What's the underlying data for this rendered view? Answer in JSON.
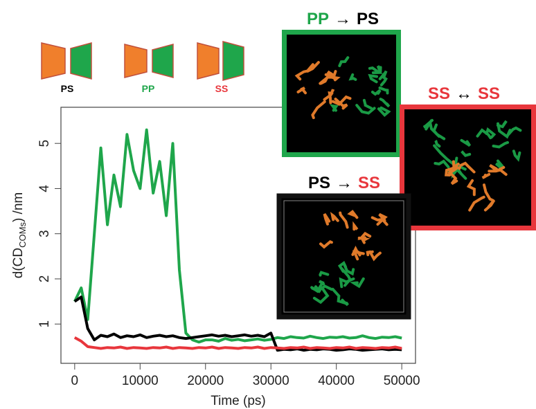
{
  "chart_data": {
    "type": "line",
    "xlabel": "Time (ps)",
    "ylabel": [
      "d(CD",
      "COMs",
      ") /nm"
    ],
    "xlim": [
      -2100,
      52100
    ],
    "ylim": [
      0.13,
      5.8
    ],
    "xticks": [
      0,
      10000,
      20000,
      30000,
      40000,
      50000
    ],
    "yticks": [
      1,
      2,
      3,
      4,
      5
    ],
    "x": [
      0,
      1000,
      2000,
      3000,
      4000,
      5000,
      6000,
      7000,
      8000,
      9000,
      10000,
      11000,
      12000,
      13000,
      14000,
      15000,
      16000,
      17000,
      18000,
      19000,
      20000,
      21000,
      22000,
      23000,
      24000,
      25000,
      26000,
      27000,
      28000,
      29000,
      30000,
      31000,
      32000,
      33000,
      34000,
      35000,
      36000,
      37000,
      38000,
      39000,
      40000,
      41000,
      42000,
      43000,
      44000,
      45000,
      46000,
      47000,
      48000,
      49000,
      50000
    ],
    "series": [
      {
        "color": "#1fa64b",
        "values": [
          1.5,
          1.8,
          1.1,
          3.0,
          4.9,
          3.2,
          4.3,
          3.6,
          5.2,
          4.4,
          4.0,
          5.3,
          3.9,
          4.6,
          3.4,
          5.0,
          2.2,
          0.8,
          0.65,
          0.6,
          0.65,
          0.65,
          0.62,
          0.68,
          0.64,
          0.66,
          0.63,
          0.65,
          0.67,
          0.64,
          0.66,
          0.7,
          0.68,
          0.72,
          0.7,
          0.69,
          0.73,
          0.7,
          0.68,
          0.71,
          0.7,
          0.72,
          0.69,
          0.7,
          0.74,
          0.7,
          0.68,
          0.71,
          0.7,
          0.72,
          0.69
        ]
      },
      {
        "color": "#000000",
        "values": [
          1.5,
          1.6,
          0.9,
          0.65,
          0.75,
          0.72,
          0.78,
          0.7,
          0.74,
          0.72,
          0.76,
          0.7,
          0.73,
          0.75,
          0.72,
          0.74,
          0.7,
          0.68,
          0.7,
          0.72,
          0.74,
          0.76,
          0.73,
          0.75,
          0.72,
          0.74,
          0.76,
          0.73,
          0.75,
          0.72,
          0.8,
          0.42,
          0.44,
          0.43,
          0.45,
          0.42,
          0.44,
          0.43,
          0.45,
          0.44,
          0.42,
          0.43,
          0.45,
          0.44,
          0.42,
          0.43,
          0.44,
          0.45,
          0.43,
          0.44,
          0.43
        ]
      },
      {
        "color": "#e8363c",
        "values": [
          0.7,
          0.62,
          0.5,
          0.48,
          0.46,
          0.48,
          0.47,
          0.49,
          0.46,
          0.48,
          0.47,
          0.46,
          0.48,
          0.47,
          0.49,
          0.46,
          0.48,
          0.47,
          0.46,
          0.48,
          0.47,
          0.49,
          0.46,
          0.48,
          0.47,
          0.46,
          0.48,
          0.47,
          0.49,
          0.46,
          0.48,
          0.47,
          0.46,
          0.48,
          0.47,
          0.49,
          0.46,
          0.48,
          0.47,
          0.46,
          0.48,
          0.47,
          0.49,
          0.46,
          0.48,
          0.47,
          0.46,
          0.48,
          0.47,
          0.49,
          0.46
        ]
      }
    ],
    "legend": [
      {
        "label": "PS",
        "color": "#000000"
      },
      {
        "label": "PP",
        "color": "#1fa64b"
      },
      {
        "label": "SS",
        "color": "#e8363c"
      }
    ],
    "annotations": [
      [
        {
          "text": "PP",
          "color": "#1fa64b"
        },
        {
          "text": "→",
          "color": "#000000"
        },
        {
          "text": "PS",
          "color": "#000000"
        }
      ],
      [
        {
          "text": "SS",
          "color": "#e8363c"
        },
        {
          "text": "↔",
          "color": "#000000"
        },
        {
          "text": "SS",
          "color": "#e8363c"
        }
      ],
      [
        {
          "text": "PS",
          "color": "#000000"
        },
        {
          "text": "→",
          "color": "#000000"
        },
        {
          "text": "SS",
          "color": "#e8363c"
        }
      ]
    ]
  }
}
